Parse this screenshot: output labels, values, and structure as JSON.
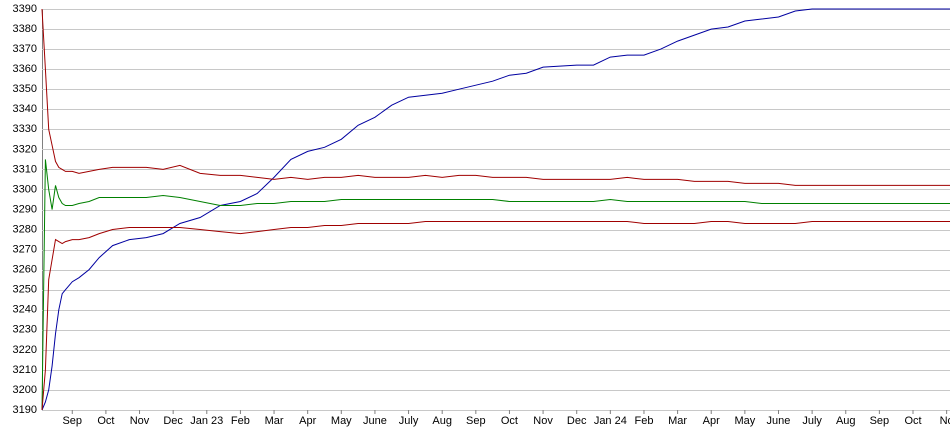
{
  "chart_data": {
    "type": "line",
    "x": [
      0.1,
      0.2,
      0.3,
      0.4,
      0.5,
      0.6,
      0.7,
      0.8,
      1.0,
      1.2,
      1.5,
      1.8,
      2.2,
      2.7,
      3.2,
      3.7,
      4.2,
      4.8,
      5.4,
      6.0,
      6.5,
      7.0,
      7.5,
      8.0,
      8.5,
      9.0,
      9.5,
      10.0,
      10.5,
      11.0,
      11.5,
      12.0,
      12.5,
      13.0,
      13.5,
      14.0,
      14.5,
      15.0,
      16.0,
      16.5,
      17.0,
      17.5,
      18.0,
      18.5,
      19.0,
      19.5,
      20.0,
      20.5,
      21.0,
      21.5,
      22.0,
      22.5,
      23.0,
      24.0,
      25.0,
      26.0,
      27.1
    ],
    "series": [
      {
        "color": "#0000a0",
        "values": [
          3190,
          3194,
          3200,
          3212,
          3228,
          3240,
          3248,
          3250,
          3254,
          3256,
          3260,
          3266,
          3272,
          3275,
          3276,
          3278,
          3283,
          3286,
          3292,
          3294,
          3298,
          3306,
          3315,
          3319,
          3321,
          3325,
          3332,
          3336,
          3342,
          3346,
          3347,
          3348,
          3350,
          3352,
          3354,
          3357,
          3358,
          3361,
          3362,
          3362,
          3366,
          3367,
          3367,
          3370,
          3374,
          3377,
          3380,
          3381,
          3384,
          3385,
          3386,
          3389,
          3390,
          3390,
          3390,
          3390,
          3390
        ]
      },
      {
        "color": "#a00000",
        "values": [
          3390,
          3360,
          3330,
          3322,
          3314,
          3311,
          3310,
          3309,
          3309,
          3308,
          3309,
          3310,
          3311,
          3311,
          3311,
          3310,
          3312,
          3308,
          3307,
          3307,
          3306,
          3305,
          3306,
          3305,
          3306,
          3306,
          3307,
          3306,
          3306,
          3306,
          3307,
          3306,
          3307,
          3307,
          3306,
          3306,
          3306,
          3305,
          3305,
          3305,
          3305,
          3306,
          3305,
          3305,
          3305,
          3304,
          3304,
          3304,
          3303,
          3303,
          3303,
          3302,
          3302,
          3302,
          3302,
          3302,
          3302
        ]
      },
      {
        "color": "#008000",
        "values": [
          3190,
          3315,
          3300,
          3290,
          3302,
          3296,
          3293,
          3292,
          3292,
          3293,
          3294,
          3296,
          3296,
          3296,
          3296,
          3297,
          3296,
          3294,
          3292,
          3292,
          3293,
          3293,
          3294,
          3294,
          3294,
          3295,
          3295,
          3295,
          3295,
          3295,
          3295,
          3295,
          3295,
          3295,
          3295,
          3294,
          3294,
          3294,
          3294,
          3294,
          3295,
          3294,
          3294,
          3294,
          3294,
          3294,
          3294,
          3294,
          3294,
          3293,
          3293,
          3293,
          3293,
          3293,
          3293,
          3293,
          3293
        ]
      },
      {
        "color": "#a00000",
        "values": [
          3190,
          3210,
          3255,
          3265,
          3275,
          3274,
          3273,
          3274,
          3275,
          3275,
          3276,
          3278,
          3280,
          3281,
          3281,
          3281,
          3281,
          3280,
          3279,
          3278,
          3279,
          3280,
          3281,
          3281,
          3282,
          3282,
          3283,
          3283,
          3283,
          3283,
          3284,
          3284,
          3284,
          3284,
          3284,
          3284,
          3284,
          3284,
          3284,
          3284,
          3284,
          3284,
          3283,
          3283,
          3283,
          3283,
          3284,
          3284,
          3283,
          3283,
          3283,
          3283,
          3284,
          3284,
          3284,
          3284,
          3284
        ]
      }
    ],
    "xlim": [
      0.1,
      27.1
    ],
    "xticks": [
      {
        "value": 1,
        "label": "Sep"
      },
      {
        "value": 2,
        "label": "Oct"
      },
      {
        "value": 3,
        "label": "Nov"
      },
      {
        "value": 4,
        "label": "Dec"
      },
      {
        "value": 5,
        "label": "Jan 23"
      },
      {
        "value": 6,
        "label": "Feb"
      },
      {
        "value": 7,
        "label": "Mar"
      },
      {
        "value": 8,
        "label": "Apr"
      },
      {
        "value": 9,
        "label": "May"
      },
      {
        "value": 10,
        "label": "June"
      },
      {
        "value": 11,
        "label": "July"
      },
      {
        "value": 12,
        "label": "Aug"
      },
      {
        "value": 13,
        "label": "Sep"
      },
      {
        "value": 14,
        "label": "Oct"
      },
      {
        "value": 15,
        "label": "Nov"
      },
      {
        "value": 16,
        "label": "Dec"
      },
      {
        "value": 17,
        "label": "Jan 24"
      },
      {
        "value": 18,
        "label": "Feb"
      },
      {
        "value": 19,
        "label": "Mar"
      },
      {
        "value": 20,
        "label": "Apr"
      },
      {
        "value": 21,
        "label": "May"
      },
      {
        "value": 22,
        "label": "June"
      },
      {
        "value": 23,
        "label": "July"
      },
      {
        "value": 24,
        "label": "Aug"
      },
      {
        "value": 25,
        "label": "Sep"
      },
      {
        "value": 26,
        "label": "Oct"
      },
      {
        "value": 27,
        "label": "No"
      }
    ],
    "ylim": [
      3190,
      3390
    ],
    "yticks": [
      3190,
      3200,
      3210,
      3220,
      3230,
      3240,
      3250,
      3260,
      3270,
      3280,
      3290,
      3300,
      3310,
      3320,
      3330,
      3340,
      3350,
      3360,
      3370,
      3380,
      3390
    ],
    "grid": true
  }
}
